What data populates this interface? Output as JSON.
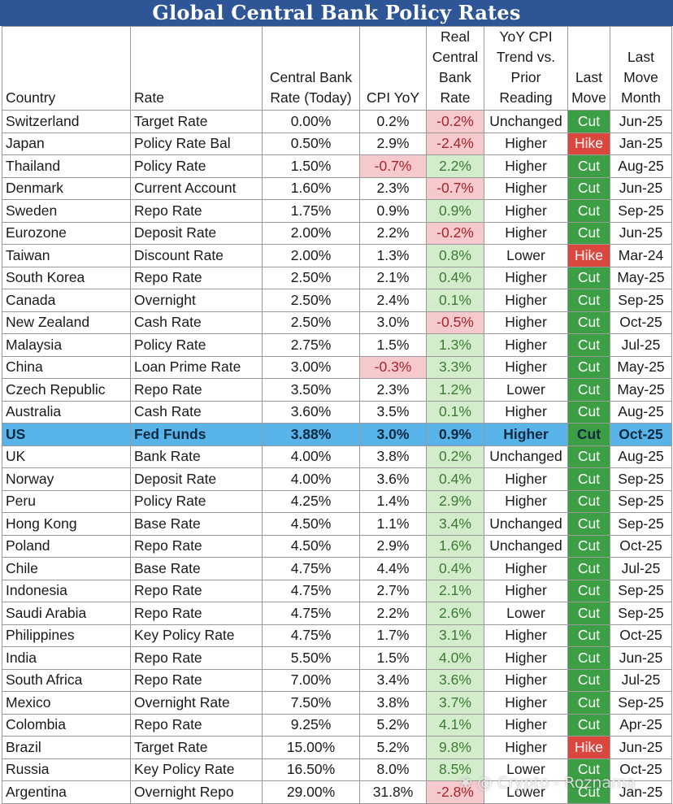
{
  "title": "Global Central Bank Policy Rates",
  "watermark": "❀ @ Crypto - Roznama",
  "chart_data": {
    "type": "table",
    "title": "Global Central Bank Policy Rates",
    "columns": [
      "Country",
      "Rate",
      "Central Bank Rate (Today)",
      "CPI YoY",
      "Real Central Bank Rate",
      "YoY CPI Trend vs. Prior Reading",
      "Last Move",
      "Last Move Month"
    ],
    "header_lines": [
      [
        "Country"
      ],
      [
        "Rate"
      ],
      [
        "Central Bank",
        "Rate (Today)"
      ],
      [
        "CPI YoY"
      ],
      [
        "Real",
        "Central",
        "Bank",
        "Rate"
      ],
      [
        "YoY CPI",
        "Trend vs.",
        "Prior",
        "Reading"
      ],
      [
        "Last",
        "Move"
      ],
      [
        "Last",
        "Move",
        "Month"
      ]
    ],
    "highlight_row": 14,
    "colors": {
      "title_bg": "#2e5596",
      "negative_bg": "#f6c9cc",
      "positive_bg": "#d3edcc",
      "cut": "#3c9e45",
      "hike": "#d9473f",
      "highlight": "#58b3e9"
    },
    "rows": [
      [
        "Switzerland",
        "Target Rate",
        "0.00%",
        "0.2%",
        "-0.2%",
        "Unchanged",
        "Cut",
        "Jun-25"
      ],
      [
        "Japan",
        "Policy Rate Bal",
        "0.50%",
        "2.9%",
        "-2.4%",
        "Higher",
        "Hike",
        "Jan-25"
      ],
      [
        "Thailand",
        "Policy Rate",
        "1.50%",
        "-0.7%",
        "2.2%",
        "Higher",
        "Cut",
        "Aug-25"
      ],
      [
        "Denmark",
        "Current Account",
        "1.60%",
        "2.3%",
        "-0.7%",
        "Higher",
        "Cut",
        "Jun-25"
      ],
      [
        "Sweden",
        "Repo Rate",
        "1.75%",
        "0.9%",
        "0.9%",
        "Higher",
        "Cut",
        "Sep-25"
      ],
      [
        "Eurozone",
        "Deposit Rate",
        "2.00%",
        "2.2%",
        "-0.2%",
        "Higher",
        "Cut",
        "Jun-25"
      ],
      [
        "Taiwan",
        "Discount Rate",
        "2.00%",
        "1.3%",
        "0.8%",
        "Lower",
        "Hike",
        "Mar-24"
      ],
      [
        "South Korea",
        "Repo Rate",
        "2.50%",
        "2.1%",
        "0.4%",
        "Higher",
        "Cut",
        "May-25"
      ],
      [
        "Canada",
        "Overnight",
        "2.50%",
        "2.4%",
        "0.1%",
        "Higher",
        "Cut",
        "Sep-25"
      ],
      [
        "New Zealand",
        "Cash Rate",
        "2.50%",
        "3.0%",
        "-0.5%",
        "Higher",
        "Cut",
        "Oct-25"
      ],
      [
        "Malaysia",
        "Policy Rate",
        "2.75%",
        "1.5%",
        "1.3%",
        "Higher",
        "Cut",
        "Jul-25"
      ],
      [
        "China",
        "Loan Prime Rate",
        "3.00%",
        "-0.3%",
        "3.3%",
        "Higher",
        "Cut",
        "May-25"
      ],
      [
        "Czech Republic",
        "Repo Rate",
        "3.50%",
        "2.3%",
        "1.2%",
        "Lower",
        "Cut",
        "May-25"
      ],
      [
        "Australia",
        "Cash Rate",
        "3.60%",
        "3.5%",
        "0.1%",
        "Higher",
        "Cut",
        "Aug-25"
      ],
      [
        "US",
        "Fed Funds",
        "3.88%",
        "3.0%",
        "0.9%",
        "Higher",
        "Cut",
        "Oct-25"
      ],
      [
        "UK",
        "Bank Rate",
        "4.00%",
        "3.8%",
        "0.2%",
        "Unchanged",
        "Cut",
        "Aug-25"
      ],
      [
        "Norway",
        "Deposit Rate",
        "4.00%",
        "3.6%",
        "0.4%",
        "Higher",
        "Cut",
        "Sep-25"
      ],
      [
        "Peru",
        "Policy Rate",
        "4.25%",
        "1.4%",
        "2.9%",
        "Higher",
        "Cut",
        "Sep-25"
      ],
      [
        "Hong Kong",
        "Base Rate",
        "4.50%",
        "1.1%",
        "3.4%",
        "Unchanged",
        "Cut",
        "Sep-25"
      ],
      [
        "Poland",
        "Repo Rate",
        "4.50%",
        "2.9%",
        "1.6%",
        "Unchanged",
        "Cut",
        "Oct-25"
      ],
      [
        "Chile",
        "Base Rate",
        "4.75%",
        "4.4%",
        "0.4%",
        "Higher",
        "Cut",
        "Jul-25"
      ],
      [
        "Indonesia",
        "Repo Rate",
        "4.75%",
        "2.7%",
        "2.1%",
        "Higher",
        "Cut",
        "Sep-25"
      ],
      [
        "Saudi Arabia",
        "Repo Rate",
        "4.75%",
        "2.2%",
        "2.6%",
        "Lower",
        "Cut",
        "Sep-25"
      ],
      [
        "Philippines",
        "Key Policy Rate",
        "4.75%",
        "1.7%",
        "3.1%",
        "Higher",
        "Cut",
        "Oct-25"
      ],
      [
        "India",
        "Repo Rate",
        "5.50%",
        "1.5%",
        "4.0%",
        "Higher",
        "Cut",
        "Jun-25"
      ],
      [
        "South Africa",
        "Repo Rate",
        "7.00%",
        "3.4%",
        "3.6%",
        "Higher",
        "Cut",
        "Jul-25"
      ],
      [
        "Mexico",
        "Overnight Rate",
        "7.50%",
        "3.8%",
        "3.7%",
        "Higher",
        "Cut",
        "Sep-25"
      ],
      [
        "Colombia",
        "Repo Rate",
        "9.25%",
        "5.2%",
        "4.1%",
        "Higher",
        "Cut",
        "Apr-25"
      ],
      [
        "Brazil",
        "Target Rate",
        "15.00%",
        "5.2%",
        "9.8%",
        "Higher",
        "Hike",
        "Jun-25"
      ],
      [
        "Russia",
        "Key Policy Rate",
        "16.50%",
        "8.0%",
        "8.5%",
        "Lower",
        "Cut",
        "Oct-25"
      ],
      [
        "Argentina",
        "Overnight Repo",
        "29.00%",
        "31.8%",
        "-2.8%",
        "Lower",
        "Cut",
        "Jan-25"
      ]
    ]
  }
}
